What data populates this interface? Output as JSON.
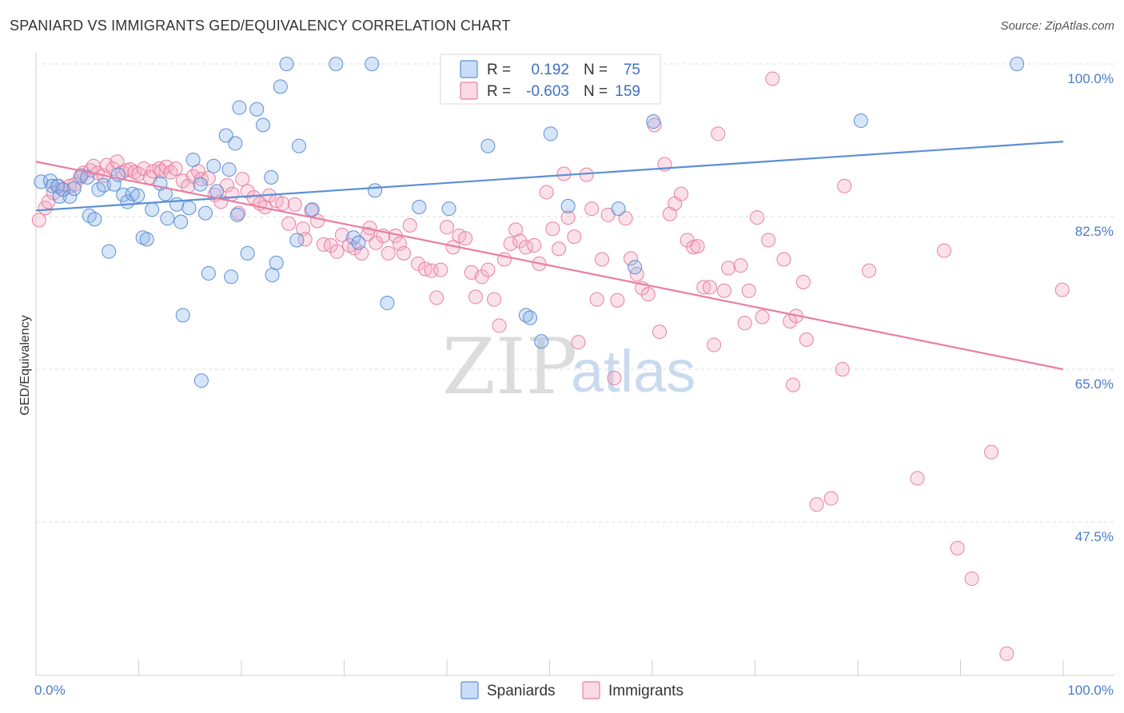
{
  "header": {
    "title": "SPANIARD VS IMMIGRANTS GED/EQUIVALENCY CORRELATION CHART",
    "source": "Source: ZipAtlas.com"
  },
  "watermark": {
    "zip": "ZIP",
    "atlas": "atlas"
  },
  "legend": {
    "r_label": "R =",
    "n_label": "N =",
    "rows": [
      {
        "r": "0.192",
        "n": "75",
        "color": "#5b8fd6"
      },
      {
        "r": "-0.603",
        "n": "159",
        "color": "#e87fa1"
      }
    ]
  },
  "chart_data": {
    "type": "scatter",
    "title": "SPANIARD VS IMMIGRANTS GED/EQUIVALENCY CORRELATION CHART",
    "xlabel": "",
    "ylabel": "GED/Equivalency",
    "xlim": [
      0,
      100
    ],
    "ylim": [
      31.5,
      102.5
    ],
    "x_tick_labels": [
      "0.0%",
      "100.0%"
    ],
    "y_ticks": [
      100.0,
      82.5,
      65.0,
      47.5
    ],
    "y_tick_labels": [
      "100.0%",
      "82.5%",
      "65.0%",
      "47.5%"
    ],
    "grid": true,
    "legend_position": "top-center",
    "series": [
      {
        "name": "Spaniards",
        "color": "#5b8fd6",
        "fill": "rgba(139,180,236,0.35)",
        "trend": {
          "x": [
            0,
            100
          ],
          "y": [
            83.2,
            91.1
          ]
        },
        "points": [
          [
            0.5,
            86.5
          ],
          [
            1.4,
            86.6
          ],
          [
            1.6,
            86.0
          ],
          [
            2.1,
            86.0
          ],
          [
            2.3,
            84.8
          ],
          [
            2.6,
            85.6
          ],
          [
            3.3,
            84.8
          ],
          [
            3.7,
            85.7
          ],
          [
            4.4,
            87.2
          ],
          [
            5.0,
            87.0
          ],
          [
            5.2,
            82.6
          ],
          [
            5.7,
            82.2
          ],
          [
            6.1,
            85.6
          ],
          [
            6.6,
            86.1
          ],
          [
            7.1,
            78.5
          ],
          [
            7.6,
            86.2
          ],
          [
            8.0,
            87.3
          ],
          [
            8.5,
            85.0
          ],
          [
            8.9,
            84.2
          ],
          [
            9.4,
            85.1
          ],
          [
            9.9,
            84.9
          ],
          [
            10.4,
            80.1
          ],
          [
            10.8,
            79.9
          ],
          [
            11.3,
            83.3
          ],
          [
            12.1,
            86.3
          ],
          [
            12.6,
            85.1
          ],
          [
            12.8,
            82.3
          ],
          [
            13.7,
            83.9
          ],
          [
            14.1,
            81.9
          ],
          [
            14.3,
            71.2
          ],
          [
            14.9,
            83.5
          ],
          [
            15.3,
            89.0
          ],
          [
            16.0,
            86.2
          ],
          [
            16.1,
            63.7
          ],
          [
            16.5,
            82.9
          ],
          [
            16.8,
            76.0
          ],
          [
            17.3,
            88.3
          ],
          [
            17.6,
            85.4
          ],
          [
            18.5,
            91.8
          ],
          [
            18.8,
            87.9
          ],
          [
            19.0,
            75.6
          ],
          [
            19.4,
            90.9
          ],
          [
            19.6,
            82.7
          ],
          [
            19.8,
            95.0
          ],
          [
            20.6,
            78.3
          ],
          [
            21.5,
            94.8
          ],
          [
            22.1,
            93.0
          ],
          [
            22.9,
            87.0
          ],
          [
            23.0,
            75.8
          ],
          [
            23.4,
            77.2
          ],
          [
            23.8,
            97.4
          ],
          [
            24.4,
            100.0
          ],
          [
            25.4,
            79.8
          ],
          [
            25.6,
            90.6
          ],
          [
            26.9,
            83.3
          ],
          [
            29.2,
            100.0
          ],
          [
            30.9,
            80.1
          ],
          [
            31.4,
            79.5
          ],
          [
            32.7,
            100.0
          ],
          [
            33.0,
            85.5
          ],
          [
            34.2,
            72.6
          ],
          [
            37.3,
            83.6
          ],
          [
            40.2,
            83.4
          ],
          [
            44.0,
            90.6
          ],
          [
            45.5,
            100.0
          ],
          [
            47.7,
            71.2
          ],
          [
            48.1,
            70.9
          ],
          [
            49.2,
            68.2
          ],
          [
            49.5,
            100.0
          ],
          [
            50.1,
            92.0
          ],
          [
            51.8,
            83.7
          ],
          [
            56.7,
            83.4
          ],
          [
            58.3,
            76.7
          ],
          [
            60.1,
            93.4
          ],
          [
            80.3,
            93.5
          ],
          [
            95.5,
            100.0
          ]
        ]
      },
      {
        "name": "Immigrants",
        "color": "#e87fa1",
        "fill": "rgba(244,172,196,0.35)",
        "trend": {
          "x": [
            0,
            100
          ],
          "y": [
            88.8,
            65.0
          ]
        },
        "points": [
          [
            0.3,
            82.1
          ],
          [
            0.9,
            83.5
          ],
          [
            1.2,
            84.2
          ],
          [
            1.7,
            85.2
          ],
          [
            2.2,
            86.0
          ],
          [
            2.7,
            85.6
          ],
          [
            3.3,
            86.0
          ],
          [
            3.8,
            86.2
          ],
          [
            4.3,
            87.0
          ],
          [
            4.6,
            87.5
          ],
          [
            5.3,
            87.8
          ],
          [
            5.6,
            88.3
          ],
          [
            6.0,
            87.5
          ],
          [
            6.6,
            87.2
          ],
          [
            6.9,
            88.4
          ],
          [
            7.5,
            88.0
          ],
          [
            7.9,
            88.8
          ],
          [
            8.4,
            87.6
          ],
          [
            8.8,
            87.8
          ],
          [
            9.2,
            87.9
          ],
          [
            9.6,
            87.6
          ],
          [
            10.0,
            87.4
          ],
          [
            10.5,
            88.0
          ],
          [
            11.1,
            87.0
          ],
          [
            11.4,
            87.7
          ],
          [
            12.0,
            88.0
          ],
          [
            12.2,
            87.7
          ],
          [
            12.7,
            88.2
          ],
          [
            13.1,
            87.6
          ],
          [
            13.6,
            88.0
          ],
          [
            14.3,
            86.6
          ],
          [
            14.8,
            86.0
          ],
          [
            15.3,
            87.1
          ],
          [
            15.8,
            87.7
          ],
          [
            16.1,
            86.8
          ],
          [
            16.8,
            86.9
          ],
          [
            17.4,
            85.0
          ],
          [
            18.0,
            84.2
          ],
          [
            18.6,
            86.1
          ],
          [
            19.1,
            85.1
          ],
          [
            19.7,
            82.9
          ],
          [
            20.1,
            86.8
          ],
          [
            20.6,
            85.4
          ],
          [
            21.2,
            84.7
          ],
          [
            21.8,
            84.0
          ],
          [
            22.3,
            83.6
          ],
          [
            22.7,
            84.9
          ],
          [
            23.4,
            84.3
          ],
          [
            24.0,
            84.0
          ],
          [
            24.6,
            81.7
          ],
          [
            25.2,
            83.9
          ],
          [
            26.0,
            81.1
          ],
          [
            26.2,
            79.9
          ],
          [
            26.8,
            83.2
          ],
          [
            27.4,
            82.0
          ],
          [
            28.0,
            79.3
          ],
          [
            28.7,
            79.2
          ],
          [
            29.3,
            78.5
          ],
          [
            29.8,
            80.4
          ],
          [
            30.5,
            79.2
          ],
          [
            31.0,
            78.9
          ],
          [
            31.7,
            78.3
          ],
          [
            32.3,
            80.5
          ],
          [
            32.5,
            81.2
          ],
          [
            33.1,
            79.5
          ],
          [
            33.8,
            80.3
          ],
          [
            34.3,
            78.3
          ],
          [
            35.0,
            80.3
          ],
          [
            35.4,
            79.4
          ],
          [
            35.8,
            78.3
          ],
          [
            36.4,
            81.5
          ],
          [
            37.2,
            77.1
          ],
          [
            37.9,
            76.5
          ],
          [
            38.5,
            76.3
          ],
          [
            39.0,
            73.2
          ],
          [
            39.4,
            76.4
          ],
          [
            40.0,
            81.3
          ],
          [
            40.6,
            79.0
          ],
          [
            41.2,
            80.3
          ],
          [
            41.8,
            80.0
          ],
          [
            42.4,
            76.1
          ],
          [
            42.8,
            73.3
          ],
          [
            43.4,
            75.6
          ],
          [
            44.0,
            76.4
          ],
          [
            44.6,
            73.0
          ],
          [
            45.1,
            70.0
          ],
          [
            45.6,
            77.6
          ],
          [
            46.2,
            79.4
          ],
          [
            46.7,
            81.0
          ],
          [
            47.1,
            79.7
          ],
          [
            47.7,
            79.0
          ],
          [
            48.5,
            79.2
          ],
          [
            49.0,
            77.1
          ],
          [
            49.7,
            85.3
          ],
          [
            50.3,
            81.1
          ],
          [
            50.9,
            78.8
          ],
          [
            51.4,
            87.4
          ],
          [
            51.8,
            82.4
          ],
          [
            52.4,
            80.2
          ],
          [
            52.8,
            68.1
          ],
          [
            53.6,
            87.3
          ],
          [
            54.1,
            83.4
          ],
          [
            54.6,
            73.0
          ],
          [
            55.1,
            77.6
          ],
          [
            55.7,
            82.7
          ],
          [
            56.3,
            64.0
          ],
          [
            56.6,
            72.9
          ],
          [
            57.4,
            82.3
          ],
          [
            57.9,
            77.7
          ],
          [
            58.5,
            75.9
          ],
          [
            59.0,
            74.3
          ],
          [
            59.6,
            73.6
          ],
          [
            60.2,
            93.0
          ],
          [
            60.7,
            69.3
          ],
          [
            61.2,
            88.5
          ],
          [
            61.7,
            82.8
          ],
          [
            62.2,
            84.0
          ],
          [
            62.8,
            85.1
          ],
          [
            63.4,
            79.8
          ],
          [
            64.0,
            79.0
          ],
          [
            64.4,
            79.1
          ],
          [
            65.0,
            74.4
          ],
          [
            65.6,
            74.4
          ],
          [
            66.0,
            67.8
          ],
          [
            66.4,
            92.0
          ],
          [
            67.0,
            74.0
          ],
          [
            67.4,
            76.6
          ],
          [
            68.6,
            76.9
          ],
          [
            69.0,
            70.3
          ],
          [
            69.4,
            74.0
          ],
          [
            70.2,
            82.4
          ],
          [
            70.7,
            71.0
          ],
          [
            71.3,
            79.8
          ],
          [
            71.7,
            98.3
          ],
          [
            72.8,
            77.6
          ],
          [
            73.4,
            70.5
          ],
          [
            73.7,
            63.2
          ],
          [
            74.0,
            71.1
          ],
          [
            74.7,
            75.0
          ],
          [
            75.0,
            68.4
          ],
          [
            76.0,
            49.5
          ],
          [
            77.4,
            50.2
          ],
          [
            78.5,
            65.0
          ],
          [
            78.7,
            86.0
          ],
          [
            81.1,
            76.3
          ],
          [
            85.8,
            52.5
          ],
          [
            88.4,
            78.6
          ],
          [
            89.7,
            44.5
          ],
          [
            91.1,
            41.0
          ],
          [
            93.0,
            55.5
          ],
          [
            94.5,
            32.4
          ],
          [
            99.9,
            74.1
          ]
        ]
      }
    ]
  },
  "bottom_legend": {
    "items": [
      "Spaniards",
      "Immigrants"
    ]
  }
}
